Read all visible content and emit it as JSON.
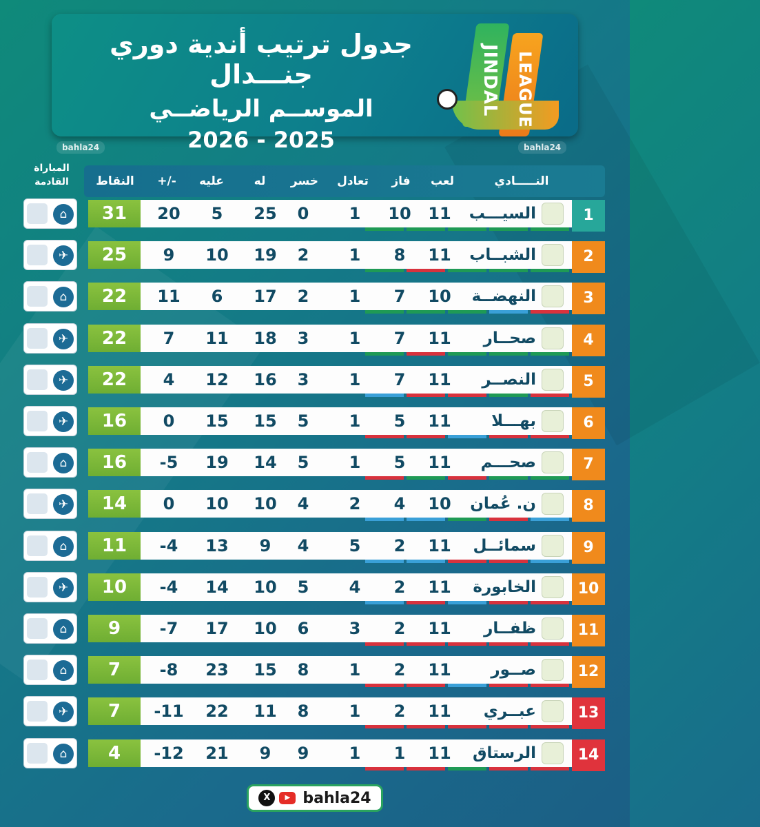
{
  "header": {
    "title_line1": "جدول ترتيب أندية دوري جنـــدال",
    "title_line2": "الموســم الرياضــي",
    "title_line3": "2026 - 2025",
    "logo_word1": "JINDAL",
    "logo_word2": "LEAGUE"
  },
  "watermark": "bahla24",
  "columns": {
    "club": "النـــــادي",
    "played": "لعب",
    "won": "فاز",
    "draw": "تعادل",
    "lost": "خسر",
    "gf": "له",
    "ga": "عليه",
    "diff": "+/-",
    "points": "النقاط",
    "next_line1": "المباراة",
    "next_line2": "القادمة"
  },
  "colors": {
    "rank_teal": "#27a79a",
    "rank_orange": "#f08a1c",
    "rank_red": "#e0333c",
    "points_green": "#7db83b",
    "form_green": "#1f9a55",
    "form_red": "#d8323d",
    "form_blue": "#3aa0d8"
  },
  "rows": [
    {
      "rank": "1",
      "club": "السيـــب",
      "played": "11",
      "won": "10",
      "draw": "1",
      "lost": "0",
      "gf": "25",
      "ga": "5",
      "diff": "20",
      "points": "31",
      "rank_color": "teal",
      "next": "home-icon",
      "form": [
        "g",
        "g",
        "g",
        "g",
        "g"
      ]
    },
    {
      "rank": "2",
      "club": "الشبــاب",
      "played": "11",
      "won": "8",
      "draw": "1",
      "lost": "2",
      "gf": "19",
      "ga": "10",
      "diff": "9",
      "points": "25",
      "rank_color": "orange",
      "next": "plane-icon",
      "form": [
        "g",
        "r",
        "g",
        "g",
        "g"
      ]
    },
    {
      "rank": "3",
      "club": "النهضــة",
      "played": "10",
      "won": "7",
      "draw": "1",
      "lost": "2",
      "gf": "17",
      "ga": "6",
      "diff": "11",
      "points": "22",
      "rank_color": "orange",
      "next": "home-icon",
      "form": [
        "g",
        "g",
        "g",
        "b",
        "r"
      ]
    },
    {
      "rank": "4",
      "club": "صحــار",
      "played": "11",
      "won": "7",
      "draw": "1",
      "lost": "3",
      "gf": "18",
      "ga": "11",
      "diff": "7",
      "points": "22",
      "rank_color": "orange",
      "next": "plane-icon",
      "form": [
        "g",
        "r",
        "g",
        "g",
        "g"
      ]
    },
    {
      "rank": "5",
      "club": "النصــر",
      "played": "11",
      "won": "7",
      "draw": "1",
      "lost": "3",
      "gf": "16",
      "ga": "12",
      "diff": "4",
      "points": "22",
      "rank_color": "orange",
      "next": "plane-icon",
      "form": [
        "b",
        "r",
        "r",
        "g",
        "r"
      ]
    },
    {
      "rank": "6",
      "club": "بهـــلا",
      "played": "11",
      "won": "5",
      "draw": "1",
      "lost": "5",
      "gf": "15",
      "ga": "15",
      "diff": "0",
      "points": "16",
      "rank_color": "orange",
      "next": "plane-icon",
      "form": [
        "r",
        "r",
        "b",
        "r",
        "r"
      ]
    },
    {
      "rank": "7",
      "club": "صحـــم",
      "played": "11",
      "won": "5",
      "draw": "1",
      "lost": "5",
      "gf": "14",
      "ga": "19",
      "diff": "-5",
      "points": "16",
      "rank_color": "orange",
      "next": "home-icon",
      "form": [
        "r",
        "g",
        "r",
        "g",
        "g"
      ]
    },
    {
      "rank": "8",
      "club": "ن. عُمان",
      "played": "10",
      "won": "4",
      "draw": "2",
      "lost": "4",
      "gf": "10",
      "ga": "10",
      "diff": "0",
      "points": "14",
      "rank_color": "orange",
      "next": "plane-icon",
      "form": [
        "b",
        "b",
        "g",
        "r",
        "b"
      ]
    },
    {
      "rank": "9",
      "club": "سمائــل",
      "played": "11",
      "won": "2",
      "draw": "5",
      "lost": "4",
      "gf": "9",
      "ga": "13",
      "diff": "-4",
      "points": "11",
      "rank_color": "orange",
      "next": "home-icon",
      "form": [
        "b",
        "b",
        "r",
        "r",
        "b"
      ]
    },
    {
      "rank": "10",
      "club": "الخابورة",
      "played": "11",
      "won": "2",
      "draw": "4",
      "lost": "5",
      "gf": "10",
      "ga": "14",
      "diff": "-4",
      "points": "10",
      "rank_color": "orange",
      "next": "plane-icon",
      "form": [
        "b",
        "r",
        "b",
        "r",
        "r"
      ]
    },
    {
      "rank": "11",
      "club": "ظفــار",
      "played": "11",
      "won": "2",
      "draw": "3",
      "lost": "6",
      "gf": "10",
      "ga": "17",
      "diff": "-7",
      "points": "9",
      "rank_color": "orange",
      "next": "home-icon",
      "form": [
        "r",
        "r",
        "r",
        "r",
        "r"
      ]
    },
    {
      "rank": "12",
      "club": "صــور",
      "played": "11",
      "won": "2",
      "draw": "1",
      "lost": "8",
      "gf": "15",
      "ga": "23",
      "diff": "-8",
      "points": "7",
      "rank_color": "orange",
      "next": "home-icon",
      "form": [
        "r",
        "r",
        "b",
        "r",
        "r"
      ]
    },
    {
      "rank": "13",
      "club": "عبــري",
      "played": "11",
      "won": "2",
      "draw": "1",
      "lost": "8",
      "gf": "11",
      "ga": "22",
      "diff": "-11",
      "points": "7",
      "rank_color": "red",
      "next": "plane-icon",
      "form": [
        "r",
        "r",
        "r",
        "r",
        "r"
      ]
    },
    {
      "rank": "14",
      "club": "الرستاق",
      "played": "11",
      "won": "1",
      "draw": "1",
      "lost": "9",
      "gf": "9",
      "ga": "21",
      "diff": "-12",
      "points": "4",
      "rank_color": "red",
      "next": "home-icon",
      "form": [
        "r",
        "r",
        "g",
        "r",
        "r"
      ]
    }
  ],
  "footer": {
    "handle": "bahla24",
    "x_label": "X",
    "yt_label": "▶"
  }
}
